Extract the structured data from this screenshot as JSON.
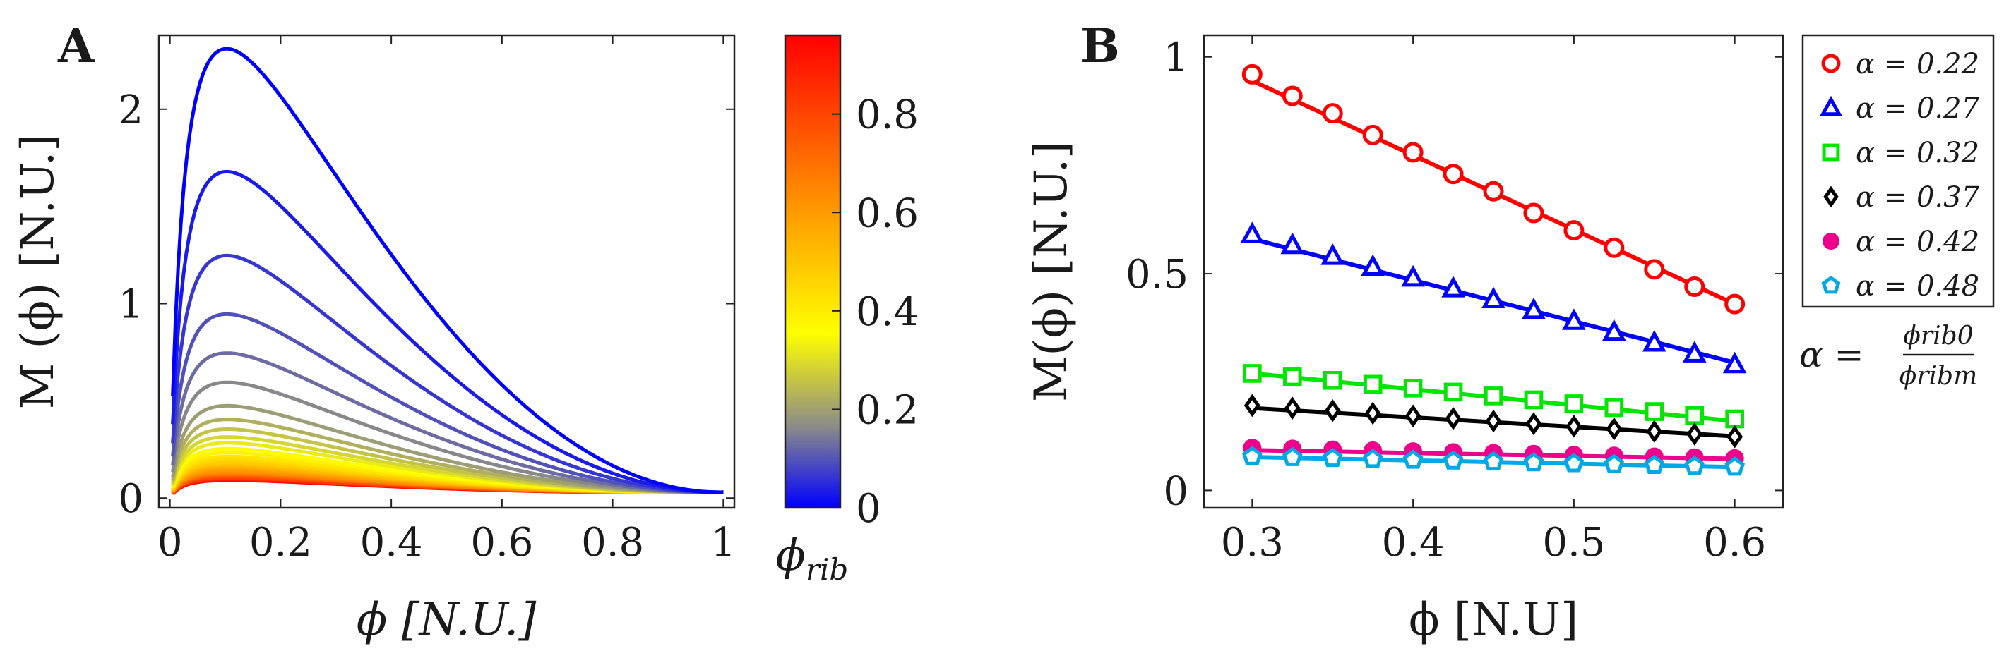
{
  "chart_data": [
    {
      "type": "line",
      "panel_label": "A",
      "xlabel": "ϕ [N.U.]",
      "ylabel": "M (ϕ) [N.U.]",
      "xlim": [
        -0.02,
        1.02
      ],
      "ylim": [
        -0.05,
        2.38
      ],
      "x_ticks": [
        "0",
        "0.2",
        "0.4",
        "0.6",
        "0.8",
        "1"
      ],
      "x_tick_values": [
        0,
        0.2,
        0.4,
        0.6,
        0.8,
        1
      ],
      "y_ticks": [
        "0",
        "1",
        "2"
      ],
      "y_tick_values": [
        0,
        1,
        2
      ],
      "curve_model": "M(ϕ) ∝ ϕ·(1−ϕ)^2 / (ϕ + ϕ_rib)",
      "curve_peak_x": 0.09,
      "curve_end": [
        1,
        0.03
      ],
      "series_peaks": [
        2.3,
        1.67,
        1.24,
        0.94,
        0.74,
        0.59,
        0.47,
        0.4,
        0.35,
        0.31,
        0.28,
        0.25,
        0.23,
        0.21,
        0.195,
        0.18,
        0.17,
        0.16,
        0.15,
        0.14,
        0.13,
        0.125,
        0.12,
        0.115,
        0.11,
        0.105,
        0.1,
        0.097,
        0.094,
        0.091,
        0.088
      ],
      "colorbar": {
        "label": "ϕrib",
        "range": [
          0,
          0.96
        ],
        "ticks": [
          "0",
          "0.2",
          "0.4",
          "0.6",
          "0.8"
        ],
        "tick_values": [
          0,
          0.2,
          0.4,
          0.6,
          0.8
        ],
        "colormap": [
          "#0000ff",
          "#8a8a8a",
          "#ffff00",
          "#ffa500",
          "#ff0000"
        ]
      }
    },
    {
      "type": "scatter",
      "panel_label": "B",
      "xlabel": "ϕ [N.U]",
      "ylabel": "M(ϕ) [N.U.]",
      "xlim": [
        0.27,
        0.63
      ],
      "ylim": [
        -0.04,
        1.05
      ],
      "x_ticks": [
        "0.3",
        "0.4",
        "0.5",
        "0.6"
      ],
      "x_tick_values": [
        0.3,
        0.4,
        0.5,
        0.6
      ],
      "y_ticks": [
        "0",
        "0.5",
        "1"
      ],
      "y_tick_values": [
        0,
        0.5,
        1
      ],
      "x": [
        0.3,
        0.325,
        0.35,
        0.375,
        0.4,
        0.425,
        0.45,
        0.475,
        0.5,
        0.525,
        0.55,
        0.575,
        0.6
      ],
      "series": [
        {
          "name": "α = 0.22",
          "marker": "circle",
          "color": "#ff0000",
          "points": [
            0.96,
            0.91,
            0.87,
            0.82,
            0.78,
            0.73,
            0.69,
            0.64,
            0.6,
            0.56,
            0.51,
            0.47,
            0.43
          ],
          "fit": [
            0.945,
            0.43
          ]
        },
        {
          "name": "α = 0.27",
          "marker": "triangle",
          "color": "#0000ff",
          "points": [
            0.59,
            0.565,
            0.54,
            0.515,
            0.49,
            0.465,
            0.44,
            0.415,
            0.39,
            0.365,
            0.34,
            0.315,
            0.29
          ],
          "fit": [
            0.58,
            0.295
          ]
        },
        {
          "name": "α = 0.32",
          "marker": "square",
          "color": "#00e600",
          "points": [
            0.27,
            0.262,
            0.254,
            0.245,
            0.236,
            0.227,
            0.218,
            0.209,
            0.2,
            0.191,
            0.182,
            0.173,
            0.165
          ],
          "fit": [
            0.27,
            0.16
          ]
        },
        {
          "name": "α = 0.37",
          "marker": "diamond",
          "color": "#000000",
          "points": [
            0.196,
            0.19,
            0.184,
            0.178,
            0.172,
            0.166,
            0.16,
            0.154,
            0.148,
            0.142,
            0.136,
            0.13,
            0.124
          ],
          "fit": [
            0.19,
            0.125
          ]
        },
        {
          "name": "α = 0.42",
          "marker": "filled-circle",
          "color": "#ec008c",
          "points": [
            0.098,
            0.096,
            0.094,
            0.092,
            0.09,
            0.088,
            0.086,
            0.084,
            0.082,
            0.08,
            0.078,
            0.076,
            0.074
          ],
          "fit": [
            0.093,
            0.073
          ]
        },
        {
          "name": "α = 0.48",
          "marker": "pentagon",
          "color": "#00a8e6",
          "points": [
            0.078,
            0.076,
            0.074,
            0.072,
            0.07,
            0.068,
            0.066,
            0.064,
            0.062,
            0.06,
            0.058,
            0.056,
            0.054
          ],
          "fit": [
            0.077,
            0.054
          ]
        }
      ],
      "annotation": {
        "lhs": "α =",
        "numerator": "ϕrib0",
        "denominator": "ϕribm"
      }
    }
  ]
}
